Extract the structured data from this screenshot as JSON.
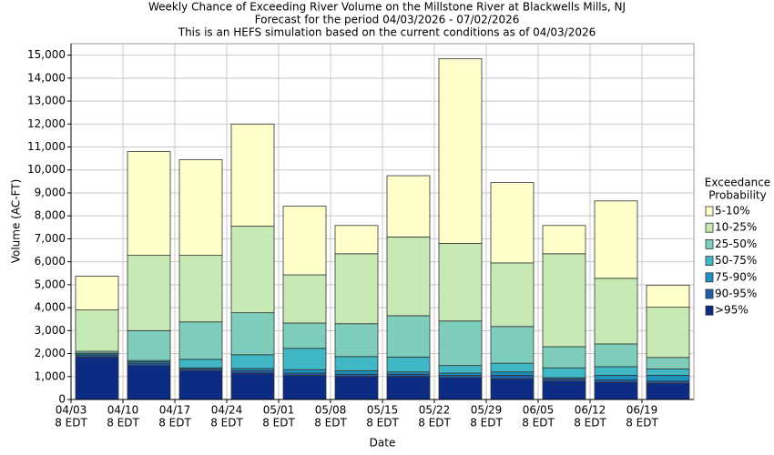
{
  "chart_data": {
    "type": "stacked-bar",
    "title": "Weekly Chance of Exceeding River Volume on the Millstone River at Blackwells Mills, NJ",
    "subtitle": [
      "Forecast for the period 04/03/2026 - 07/02/2026",
      "This is an HEFS simulation based on the current conditions as of 04/03/2026"
    ],
    "x_label": "Date",
    "y_label": "Volume (AC-FT)",
    "legend_title": [
      "Exceedance",
      "Probability"
    ],
    "legend": "right",
    "grid": true,
    "categories": [
      "04/03",
      "04/10",
      "04/17",
      "04/24",
      "05/01",
      "05/08",
      "05/15",
      "05/22",
      "05/29",
      "06/05",
      "06/12",
      "06/19"
    ],
    "category_suffix": "8 EDT",
    "ylim": [
      0,
      15500
    ],
    "yticks": [
      0,
      {
        "value": 1000,
        "label": "1,000"
      },
      {
        "value": 2000,
        "label": "2,000"
      },
      {
        "value": 3000,
        "label": "3,000"
      },
      {
        "value": 4000,
        "label": "4,000"
      },
      {
        "value": 5000,
        "label": "5,000"
      },
      {
        "value": 6000,
        "label": "6,000"
      },
      {
        "value": 7000,
        "label": "7,000"
      },
      {
        "value": 8000,
        "label": "8,000"
      },
      {
        "value": 9000,
        "label": "9,000"
      },
      {
        "value": 10000,
        "label": "10,000"
      },
      {
        "value": 11000,
        "label": "11,000"
      },
      {
        "value": 12000,
        "label": "12,000"
      },
      {
        "value": 13000,
        "label": "13,000"
      },
      {
        "value": 14000,
        "label": "14,000"
      },
      {
        "value": 15000,
        "label": "15,000"
      }
    ],
    "series": [
      {
        "name": ">95%",
        "color": "#0c2c84",
        "values": [
          1850,
          1480,
          1250,
          1150,
          1050,
          1000,
          1000,
          950,
          900,
          800,
          750,
          700
        ]
      },
      {
        "name": "90-95%",
        "color": "#225ea8",
        "values": [
          70,
          100,
          80,
          100,
          100,
          100,
          100,
          100,
          150,
          100,
          100,
          100
        ]
      },
      {
        "name": "75-90%",
        "color": "#1d91c0",
        "values": [
          60,
          70,
          50,
          100,
          150,
          150,
          100,
          100,
          150,
          50,
          200,
          250
        ]
      },
      {
        "name": "50-75%",
        "color": "#41b6c4",
        "values": [
          40,
          50,
          370,
          600,
          930,
          620,
          650,
          330,
          380,
          430,
          380,
          280
        ]
      },
      {
        "name": "25-50%",
        "color": "#7fcdbb",
        "values": [
          80,
          1300,
          1630,
          1830,
          1100,
          1430,
          1800,
          1940,
          1600,
          920,
          990,
          500
        ]
      },
      {
        "name": "10-25%",
        "color": "#c7e9b4",
        "values": [
          1800,
          3280,
          2900,
          3770,
          2100,
          3050,
          3430,
          3380,
          2770,
          4050,
          2860,
          2190
        ]
      },
      {
        "name": "5-10%",
        "color": "#ffffcc",
        "values": [
          1470,
          4520,
          4170,
          4450,
          2990,
          1230,
          2670,
          8050,
          3500,
          1230,
          3370,
          960
        ]
      }
    ]
  }
}
